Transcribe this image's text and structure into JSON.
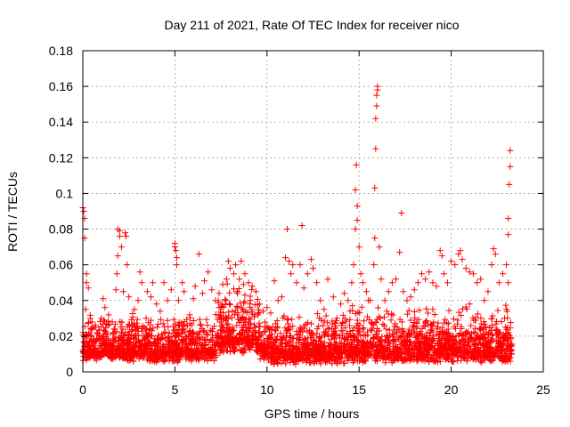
{
  "chart_data": {
    "type": "scatter",
    "title": "Day 211 of 2021, Rate Of TEC Index for receiver nico",
    "xlabel": "GPS time / hours",
    "ylabel": "ROTI / TECUs",
    "xlim": [
      0,
      25
    ],
    "ylim": [
      0,
      0.18
    ],
    "x_ticks": [
      0,
      5,
      10,
      15,
      20,
      25
    ],
    "x_tick_labels": [
      "0",
      "5",
      "10",
      "15",
      "20",
      "25"
    ],
    "y_ticks": [
      0,
      0.02,
      0.04,
      0.06,
      0.08,
      0.1,
      0.12,
      0.14,
      0.16,
      0.18
    ],
    "y_tick_labels": [
      "0",
      "0.02",
      "0.04",
      "0.06",
      "0.08",
      "0.1",
      "0.12",
      "0.14",
      "0.16",
      "0.18"
    ],
    "grid": true,
    "marker": "+",
    "series_color": "#ff0000",
    "series": [
      {
        "name": "ROTI",
        "points": [
          [
            0.0,
            0.092
          ],
          [
            0.05,
            0.09
          ],
          [
            0.1,
            0.086
          ],
          [
            0.1,
            0.075
          ],
          [
            0.2,
            0.055
          ],
          [
            0.2,
            0.05
          ],
          [
            0.3,
            0.047
          ],
          [
            0.15,
            0.035
          ],
          [
            0.4,
            0.03
          ],
          [
            0.5,
            0.028
          ],
          [
            0.6,
            0.025
          ],
          [
            0.8,
            0.022
          ],
          [
            1.0,
            0.03
          ],
          [
            1.1,
            0.041
          ],
          [
            1.2,
            0.036
          ],
          [
            1.4,
            0.032
          ],
          [
            1.6,
            0.028
          ],
          [
            1.8,
            0.046
          ],
          [
            1.85,
            0.055
          ],
          [
            1.9,
            0.065
          ],
          [
            1.9,
            0.08
          ],
          [
            2.0,
            0.079
          ],
          [
            2.0,
            0.076
          ],
          [
            2.1,
            0.07
          ],
          [
            2.2,
            0.045
          ],
          [
            2.3,
            0.078
          ],
          [
            2.35,
            0.076
          ],
          [
            2.4,
            0.06
          ],
          [
            2.5,
            0.042
          ],
          [
            2.8,
            0.035
          ],
          [
            3.0,
            0.04
          ],
          [
            3.1,
            0.056
          ],
          [
            3.2,
            0.05
          ],
          [
            3.5,
            0.045
          ],
          [
            3.7,
            0.042
          ],
          [
            3.8,
            0.05
          ],
          [
            4.0,
            0.038
          ],
          [
            4.2,
            0.034
          ],
          [
            4.4,
            0.05
          ],
          [
            4.6,
            0.04
          ],
          [
            4.8,
            0.046
          ],
          [
            5.0,
            0.072
          ],
          [
            5.0,
            0.07
          ],
          [
            5.05,
            0.068
          ],
          [
            5.1,
            0.064
          ],
          [
            5.1,
            0.06
          ],
          [
            5.2,
            0.04
          ],
          [
            5.4,
            0.05
          ],
          [
            5.5,
            0.045
          ],
          [
            5.8,
            0.032
          ],
          [
            6.0,
            0.041
          ],
          [
            6.1,
            0.048
          ],
          [
            6.3,
            0.066
          ],
          [
            6.5,
            0.044
          ],
          [
            6.6,
            0.051
          ],
          [
            6.8,
            0.056
          ],
          [
            7.0,
            0.046
          ],
          [
            7.2,
            0.04
          ],
          [
            7.4,
            0.044
          ],
          [
            7.6,
            0.049
          ],
          [
            7.8,
            0.052
          ],
          [
            7.9,
            0.062
          ],
          [
            8.0,
            0.058
          ],
          [
            8.2,
            0.055
          ],
          [
            8.3,
            0.06
          ],
          [
            8.5,
            0.052
          ],
          [
            8.6,
            0.062
          ],
          [
            8.8,
            0.055
          ],
          [
            9.0,
            0.05
          ],
          [
            9.2,
            0.048
          ],
          [
            9.4,
            0.045
          ],
          [
            9.6,
            0.038
          ],
          [
            9.8,
            0.034
          ],
          [
            10.0,
            0.036
          ],
          [
            10.2,
            0.033
          ],
          [
            10.4,
            0.051
          ],
          [
            10.6,
            0.04
          ],
          [
            10.8,
            0.042
          ],
          [
            11.0,
            0.064
          ],
          [
            11.1,
            0.08
          ],
          [
            11.2,
            0.062
          ],
          [
            11.3,
            0.055
          ],
          [
            11.4,
            0.06
          ],
          [
            11.6,
            0.05
          ],
          [
            11.8,
            0.06
          ],
          [
            11.9,
            0.082
          ],
          [
            12.0,
            0.047
          ],
          [
            12.2,
            0.055
          ],
          [
            12.4,
            0.063
          ],
          [
            12.5,
            0.058
          ],
          [
            12.7,
            0.05
          ],
          [
            12.9,
            0.04
          ],
          [
            13.1,
            0.035
          ],
          [
            13.3,
            0.052
          ],
          [
            13.6,
            0.042
          ],
          [
            13.8,
            0.03
          ],
          [
            14.0,
            0.038
          ],
          [
            14.2,
            0.044
          ],
          [
            14.4,
            0.04
          ],
          [
            14.6,
            0.05
          ],
          [
            14.7,
            0.06
          ],
          [
            14.8,
            0.08
          ],
          [
            14.8,
            0.102
          ],
          [
            14.85,
            0.116
          ],
          [
            14.9,
            0.093
          ],
          [
            14.9,
            0.085
          ],
          [
            15.0,
            0.07
          ],
          [
            15.1,
            0.055
          ],
          [
            15.2,
            0.05
          ],
          [
            15.4,
            0.045
          ],
          [
            15.5,
            0.04
          ],
          [
            15.6,
            0.04
          ],
          [
            15.8,
            0.06
          ],
          [
            15.85,
            0.075
          ],
          [
            15.85,
            0.103
          ],
          [
            15.9,
            0.125
          ],
          [
            15.9,
            0.142
          ],
          [
            15.95,
            0.149
          ],
          [
            15.95,
            0.155
          ],
          [
            16.0,
            0.16
          ],
          [
            16.0,
            0.158
          ],
          [
            16.1,
            0.07
          ],
          [
            16.2,
            0.052
          ],
          [
            16.4,
            0.04
          ],
          [
            16.6,
            0.045
          ],
          [
            16.8,
            0.05
          ],
          [
            17.0,
            0.052
          ],
          [
            17.2,
            0.067
          ],
          [
            17.3,
            0.089
          ],
          [
            17.4,
            0.045
          ],
          [
            17.6,
            0.04
          ],
          [
            17.8,
            0.042
          ],
          [
            18.0,
            0.046
          ],
          [
            18.2,
            0.05
          ],
          [
            18.4,
            0.055
          ],
          [
            18.6,
            0.052
          ],
          [
            18.8,
            0.056
          ],
          [
            19.0,
            0.05
          ],
          [
            19.2,
            0.048
          ],
          [
            19.4,
            0.068
          ],
          [
            19.5,
            0.065
          ],
          [
            19.6,
            0.055
          ],
          [
            19.8,
            0.05
          ],
          [
            20.0,
            0.062
          ],
          [
            20.2,
            0.06
          ],
          [
            20.4,
            0.066
          ],
          [
            20.5,
            0.068
          ],
          [
            20.6,
            0.063
          ],
          [
            20.8,
            0.058
          ],
          [
            21.0,
            0.056
          ],
          [
            21.2,
            0.055
          ],
          [
            21.4,
            0.05
          ],
          [
            21.6,
            0.052
          ],
          [
            21.8,
            0.04
          ],
          [
            22.0,
            0.045
          ],
          [
            22.2,
            0.06
          ],
          [
            22.3,
            0.069
          ],
          [
            22.4,
            0.066
          ],
          [
            22.6,
            0.05
          ],
          [
            22.8,
            0.055
          ],
          [
            23.0,
            0.06
          ],
          [
            23.1,
            0.077
          ],
          [
            23.1,
            0.086
          ],
          [
            23.15,
            0.105
          ],
          [
            23.2,
            0.115
          ],
          [
            23.2,
            0.124
          ],
          [
            23.1,
            0.05
          ],
          [
            23.0,
            0.035
          ],
          [
            8.4,
            0.045
          ],
          [
            8.8,
            0.043
          ],
          [
            9.1,
            0.04
          ],
          [
            7.5,
            0.036
          ],
          [
            16.5,
            0.034
          ],
          [
            19.0,
            0.035
          ],
          [
            21.0,
            0.038
          ]
        ],
        "dense_band": [
          {
            "x_start": 0.0,
            "x_end": 2.5,
            "base": 0.006,
            "top": 0.03
          },
          {
            "x_start": 2.5,
            "x_end": 7.3,
            "base": 0.005,
            "top": 0.03
          },
          {
            "x_start": 7.3,
            "x_end": 9.6,
            "base": 0.01,
            "top": 0.048
          },
          {
            "x_start": 9.6,
            "x_end": 14.5,
            "base": 0.004,
            "top": 0.03
          },
          {
            "x_start": 14.5,
            "x_end": 16.5,
            "base": 0.005,
            "top": 0.035
          },
          {
            "x_start": 16.5,
            "x_end": 23.3,
            "base": 0.005,
            "top": 0.034
          }
        ]
      }
    ]
  }
}
